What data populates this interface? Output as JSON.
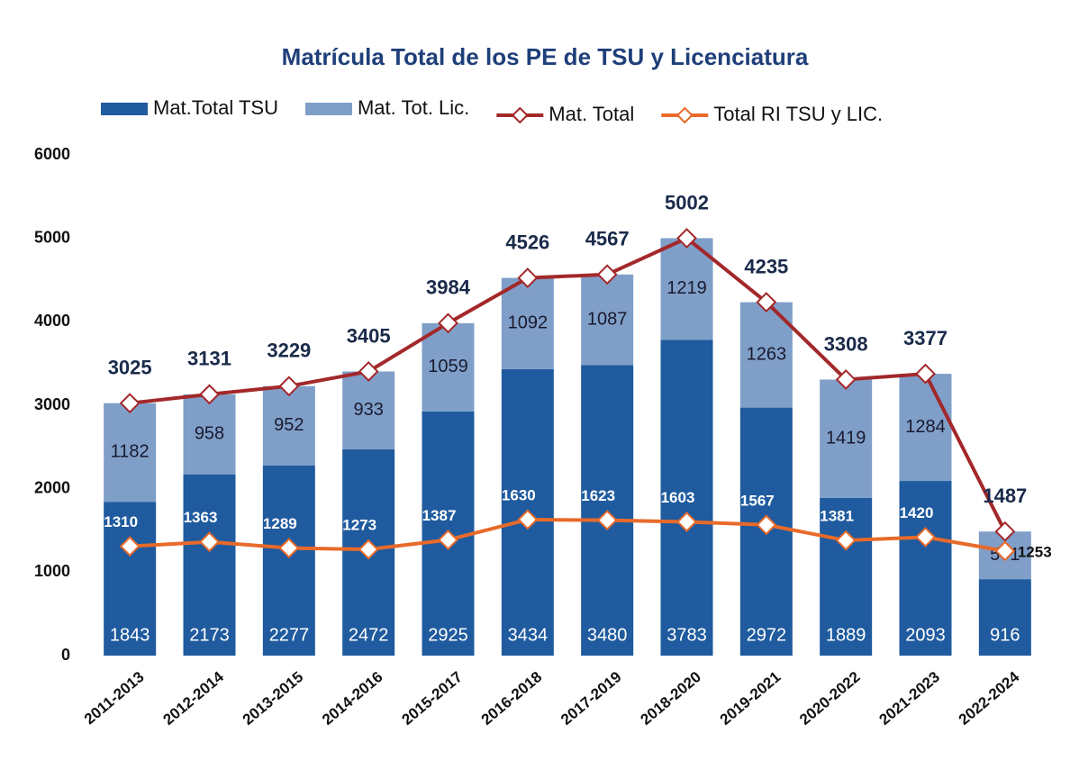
{
  "chart_data": {
    "type": "bar-line",
    "title": "Matrícula Total de los PE de TSU y Licenciatura",
    "categories": [
      "2011-2013",
      "2012-2014",
      "2013-2015",
      "2014-2016",
      "2015-2017",
      "2016-2018",
      "2017-2019",
      "2018-2020",
      "2019-2021",
      "2020-2022",
      "2021-2023",
      "2022-2024"
    ],
    "series": [
      {
        "name": "Mat.Total TSU",
        "type": "bar",
        "color": "#1f5b9e",
        "values": [
          1843,
          2173,
          2277,
          2472,
          2925,
          3434,
          3480,
          3783,
          2972,
          1889,
          2093,
          916
        ]
      },
      {
        "name": "Mat. Tot. Lic.",
        "type": "bar",
        "color": "#7f9fc9",
        "values": [
          1182,
          958,
          952,
          933,
          1059,
          1092,
          1087,
          1219,
          1263,
          1419,
          1284,
          571
        ]
      },
      {
        "name": "Mat. Total",
        "type": "line",
        "color": "#a3282a",
        "values": [
          3025,
          3131,
          3229,
          3405,
          3984,
          4526,
          4567,
          5002,
          4235,
          3308,
          3377,
          1487
        ]
      },
      {
        "name": "Total RI TSU y LIC.",
        "type": "line",
        "color": "#e86a2a",
        "values": [
          1310,
          1363,
          1289,
          1273,
          1387,
          1630,
          1623,
          1603,
          1567,
          1381,
          1420,
          1253
        ]
      }
    ],
    "stacked": true,
    "grid": false,
    "ylim": [
      0,
      6000
    ],
    "yticks": [
      0,
      1000,
      2000,
      3000,
      4000,
      5000,
      6000
    ]
  }
}
